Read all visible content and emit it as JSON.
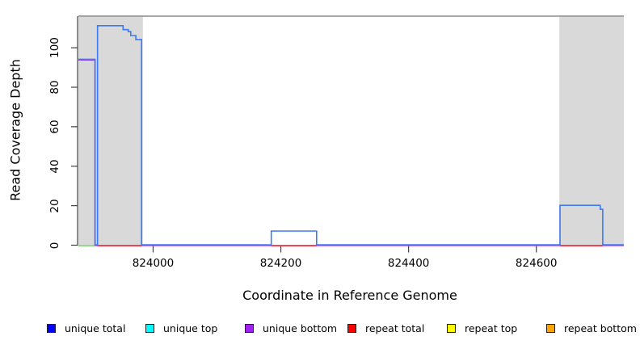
{
  "axes": {
    "xlabel": "Coordinate in Reference Genome",
    "ylabel": "Read Coverage Depth"
  },
  "legend": {
    "items": [
      {
        "label": "unique total",
        "color": "#0000ff"
      },
      {
        "label": "unique top",
        "color": "#00ffff"
      },
      {
        "label": "unique bottom",
        "color": "#a020f0"
      },
      {
        "label": "repeat total",
        "color": "#ff0000"
      },
      {
        "label": "repeat top",
        "color": "#ffff00"
      },
      {
        "label": "repeat bottom",
        "color": "#ffa500"
      }
    ]
  },
  "chart_data": {
    "type": "line",
    "title": "",
    "xlabel": "Coordinate in Reference Genome",
    "ylabel": "Read Coverage Depth",
    "xlim": [
      823883,
      824737
    ],
    "ylim": [
      0,
      116
    ],
    "xticks": [
      824000,
      824200,
      824400,
      824600
    ],
    "yticks": [
      0,
      20,
      40,
      60,
      80,
      100
    ],
    "grid": false,
    "legend_position": "bottom",
    "shaded_regions": [
      {
        "x0": 823883,
        "x1": 823984,
        "color": "#d9d9d9",
        "note": "left masked/repeat region"
      },
      {
        "x0": 824636,
        "x1": 824737,
        "color": "#d9d9d9",
        "note": "right masked/repeat region"
      }
    ],
    "series": [
      {
        "name": "unique top + repeat top (overlapping at depth 0)",
        "color": "#86cf7c",
        "segments": [
          [
            [
              823883,
              0
            ],
            [
              823909,
              0
            ]
          ]
        ]
      },
      {
        "name": "unique bottom",
        "color": "#9a35f2",
        "segments": [
          [
            [
              823883,
              94
            ],
            [
              823909,
              94
            ],
            [
              823909,
              0
            ],
            [
              824737,
              0
            ]
          ]
        ]
      },
      {
        "name": "repeat total",
        "color": "#ee3a50",
        "segments": [
          [
            [
              823913,
              0
            ],
            [
              823982,
              0
            ]
          ],
          [
            [
              824185,
              0
            ],
            [
              824256,
              0
            ]
          ],
          [
            [
              824637,
              0
            ],
            [
              824704,
              0
            ]
          ]
        ]
      },
      {
        "name": "unique total",
        "color": "#3d7af0",
        "segments": [
          [
            [
              823883,
              94
            ],
            [
              823909,
              94
            ],
            [
              823909,
              0
            ],
            [
              823913,
              0
            ],
            [
              823913,
              111
            ],
            [
              823953,
              111
            ],
            [
              823953,
              109
            ],
            [
              823961,
              109
            ],
            [
              823961,
              108
            ],
            [
              823965,
              108
            ],
            [
              823965,
              106
            ],
            [
              823973,
              106
            ],
            [
              823973,
              104
            ],
            [
              823982,
              104
            ],
            [
              823982,
              0
            ],
            [
              824185,
              0
            ],
            [
              824185,
              7
            ],
            [
              824256,
              7
            ],
            [
              824256,
              0
            ],
            [
              824637,
              0
            ],
            [
              824637,
              20
            ],
            [
              824700,
              20
            ],
            [
              824700,
              18
            ],
            [
              824704,
              18
            ],
            [
              824704,
              0
            ],
            [
              824737,
              0
            ]
          ]
        ]
      }
    ],
    "plot_frame": {
      "top_border_color": "#9a9a9a",
      "axis_color": "#404040"
    }
  }
}
